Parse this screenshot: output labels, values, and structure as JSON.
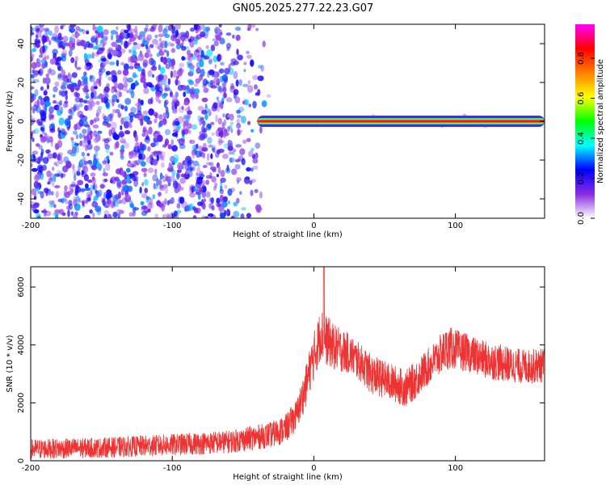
{
  "title": "GN05.2025.277.22.23.G07",
  "chart_data": [
    {
      "type": "heatmap",
      "name": "spectrogram",
      "xlabel": "Height of straight line (km)",
      "ylabel": "Frequency (Hz)",
      "xlim": [
        -200,
        163
      ],
      "ylim": [
        -50,
        50
      ],
      "xticks": [
        -200,
        -100,
        0,
        100
      ],
      "xtick_labels": [
        "-200",
        "-100",
        "0",
        "100"
      ],
      "yticks": [
        -40,
        -20,
        0,
        20,
        40
      ],
      "ytick_labels": [
        "-40",
        "-20",
        "0",
        "20",
        "40"
      ],
      "noise_region_x": [
        -200,
        -30
      ],
      "signal_line": {
        "x_start": -40,
        "x_end": 163,
        "frequency": 0,
        "amplitude": 0.93
      },
      "colorbar": {
        "label": "Normalized spectral amplitude",
        "range": [
          0,
          0.97
        ],
        "ticks": [
          0,
          0.2,
          0.4,
          0.6,
          0.8
        ],
        "tick_labels": [
          "0.0",
          "0.2",
          "0.4",
          "0.6",
          "0.8"
        ],
        "colors": [
          "#ffffff",
          "#8a2be2",
          "#0000ff",
          "#00ffff",
          "#00ff00",
          "#ffff00",
          "#ff8000",
          "#ff0000",
          "#ff00ff"
        ]
      }
    },
    {
      "type": "line",
      "name": "snr",
      "xlabel": "Height of straight line (km)",
      "ylabel": "SNR (10 * v/v)",
      "xlim": [
        -200,
        163
      ],
      "ylim": [
        0,
        6700
      ],
      "xticks": [
        -200,
        -100,
        0,
        100
      ],
      "xtick_labels": [
        "-200",
        "-100",
        "0",
        "100"
      ],
      "yticks": [
        0,
        2000,
        4000,
        6000
      ],
      "ytick_labels": [
        "0",
        "2000",
        "4000",
        "6000"
      ],
      "color": "#ee3333",
      "envelope": {
        "x": [
          -200,
          -150,
          -100,
          -60,
          -30,
          -20,
          -12,
          -6,
          -2,
          0,
          5,
          8,
          15,
          25,
          35,
          40,
          50,
          60,
          65,
          70,
          80,
          90,
          95,
          100,
          110,
          120,
          130,
          140,
          150,
          163
        ],
        "mean": [
          400,
          450,
          550,
          650,
          900,
          1100,
          1600,
          2500,
          3300,
          3600,
          4400,
          4200,
          3900,
          3700,
          3300,
          3000,
          2800,
          2600,
          2500,
          2700,
          3200,
          3700,
          3900,
          3850,
          3700,
          3500,
          3400,
          3300,
          3250,
          3300
        ],
        "spread": [
          350,
          350,
          380,
          400,
          450,
          500,
          550,
          700,
          800,
          850,
          900,
          900,
          800,
          700,
          650,
          700,
          650,
          650,
          650,
          650,
          650,
          700,
          750,
          700,
          650,
          650,
          650,
          600,
          600,
          600
        ]
      },
      "peak": {
        "x": 7,
        "y": 6700
      }
    }
  ]
}
